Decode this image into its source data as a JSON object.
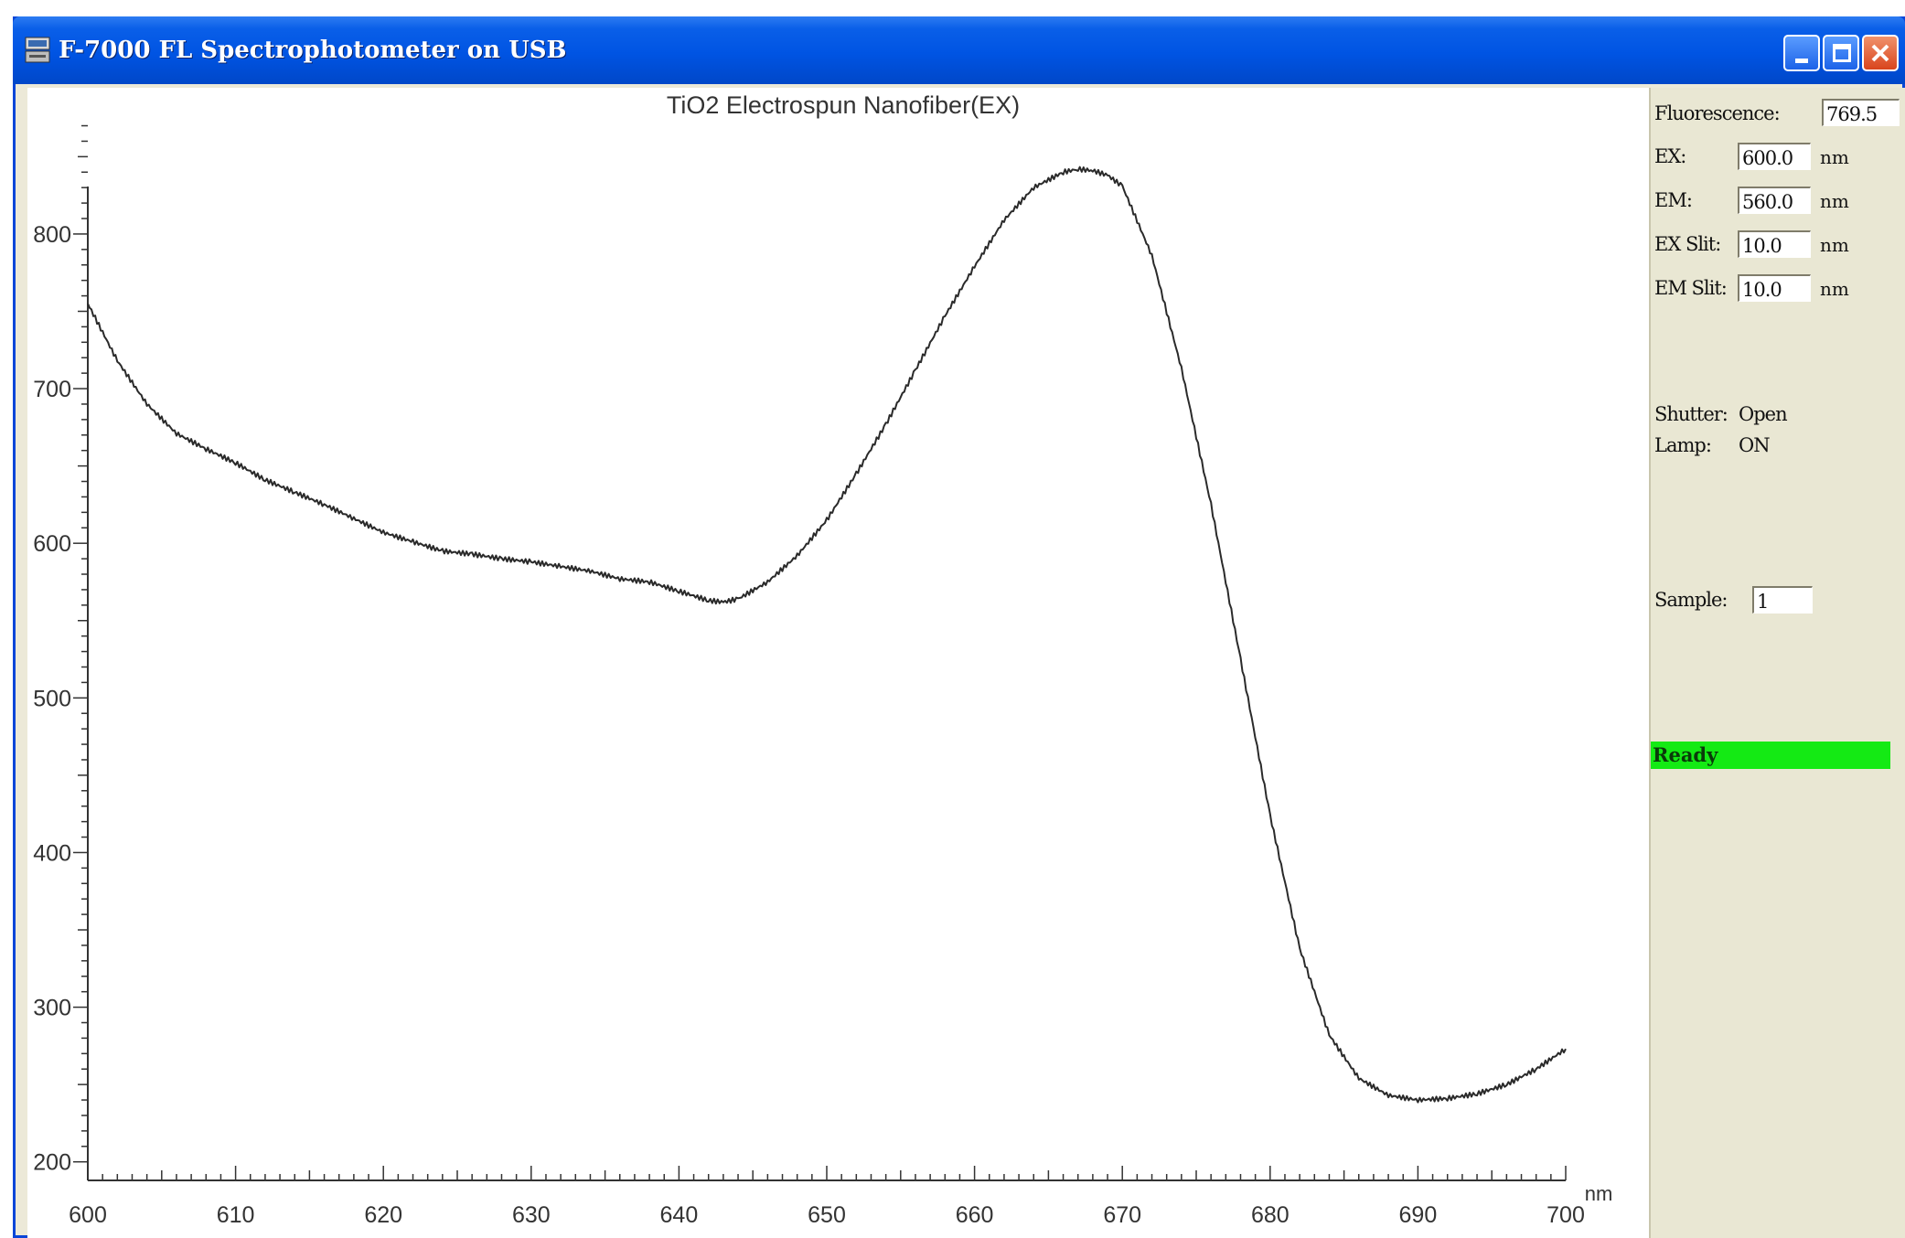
{
  "window": {
    "title": "F-7000 FL Spectrophotometer on USB"
  },
  "panel": {
    "fluorescence_label": "Fluorescence:",
    "fluorescence_value": "769.5",
    "ex_label": "EX:",
    "ex_value": "600.0",
    "ex_unit": "nm",
    "em_label": "EM:",
    "em_value": "560.0",
    "em_unit": "nm",
    "ex_slit_label": "EX Slit:",
    "ex_slit_value": "10.0",
    "ex_slit_unit": "nm",
    "em_slit_label": "EM Slit:",
    "em_slit_value": "10.0",
    "em_slit_unit": "nm",
    "shutter_label": "Shutter:",
    "shutter_value": "Open",
    "lamp_label": "Lamp:",
    "lamp_value": "ON",
    "sample_label": "Sample:",
    "sample_value": "1",
    "status": "Ready",
    "status_color": "#14ea14"
  },
  "chart_data": {
    "type": "line",
    "title": "TiO2 Electrospun Nanofiber(EX)",
    "xlabel": "nm",
    "ylabel": "",
    "xlim": [
      600,
      700
    ],
    "ylim": [
      188,
      878
    ],
    "x_ticks": [
      600,
      610,
      620,
      630,
      640,
      650,
      660,
      670,
      680,
      690,
      700
    ],
    "y_ticks": [
      200,
      300,
      400,
      500,
      600,
      700,
      800
    ],
    "grid": false,
    "series": [
      {
        "color": "#2a2a2a",
        "x": [
          600,
          602,
          604,
          606,
          608,
          610,
          612,
          614,
          616,
          618,
          620,
          622,
          624,
          626,
          628,
          630,
          632,
          634,
          636,
          638,
          640,
          642,
          643,
          644,
          646,
          648,
          650,
          652,
          654,
          656,
          658,
          660,
          662,
          664,
          666,
          667,
          668,
          669,
          670,
          672,
          674,
          676,
          678,
          680,
          682,
          684,
          686,
          688,
          690,
          692,
          694,
          696,
          698,
          700
        ],
        "y": [
          755,
          718,
          690,
          671,
          661,
          652,
          641,
          633,
          625,
          616,
          607,
          601,
          595,
          593,
          590,
          588,
          585,
          582,
          577,
          575,
          569,
          563,
          562,
          564,
          575,
          592,
          615,
          645,
          677,
          712,
          747,
          779,
          809,
          830,
          840,
          842,
          841,
          838,
          831,
          786,
          713,
          625,
          525,
          424,
          338,
          282,
          254,
          243,
          240,
          241,
          244,
          250,
          260,
          273
        ]
      }
    ]
  }
}
